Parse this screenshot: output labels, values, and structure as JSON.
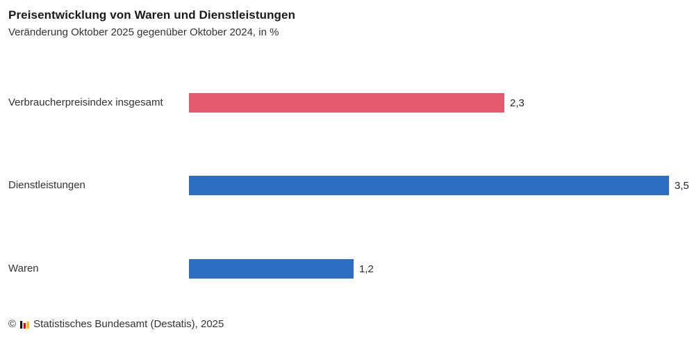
{
  "title": "Preisentwicklung von Waren und Dienstleistungen",
  "subtitle": "Veränderung Oktober 2025 gegenüber Oktober 2024, in %",
  "chart_data": {
    "type": "bar",
    "orientation": "horizontal",
    "title": "Preisentwicklung von Waren und Dienstleistungen",
    "subtitle": "Veränderung Oktober 2025 gegenüber Oktober 2024, in %",
    "categories": [
      "Verbraucherpreisindex insgesamt",
      "Dienstleistungen",
      "Waren"
    ],
    "values": [
      2.3,
      3.5,
      1.2
    ],
    "value_labels": [
      "2,3",
      "3,5",
      "1,2"
    ],
    "bar_colors": [
      "#e5596e",
      "#2b6ec3",
      "#2b6ec3"
    ],
    "unit": "%",
    "xlim": [
      0,
      3.5
    ],
    "grid": false,
    "legend": false
  },
  "footer": {
    "copyright_symbol": "©",
    "source_label": "Statistisches Bundesamt (Destatis), 2025"
  },
  "colors": {
    "accent_red": "#e5596e",
    "accent_blue": "#2b6ec3",
    "title_text": "#1a1a1a",
    "body_text": "#333333",
    "background": "#ffffff",
    "logo_black": "#1a1a1a",
    "logo_red": "#e30613",
    "logo_gold": "#f5b800"
  }
}
